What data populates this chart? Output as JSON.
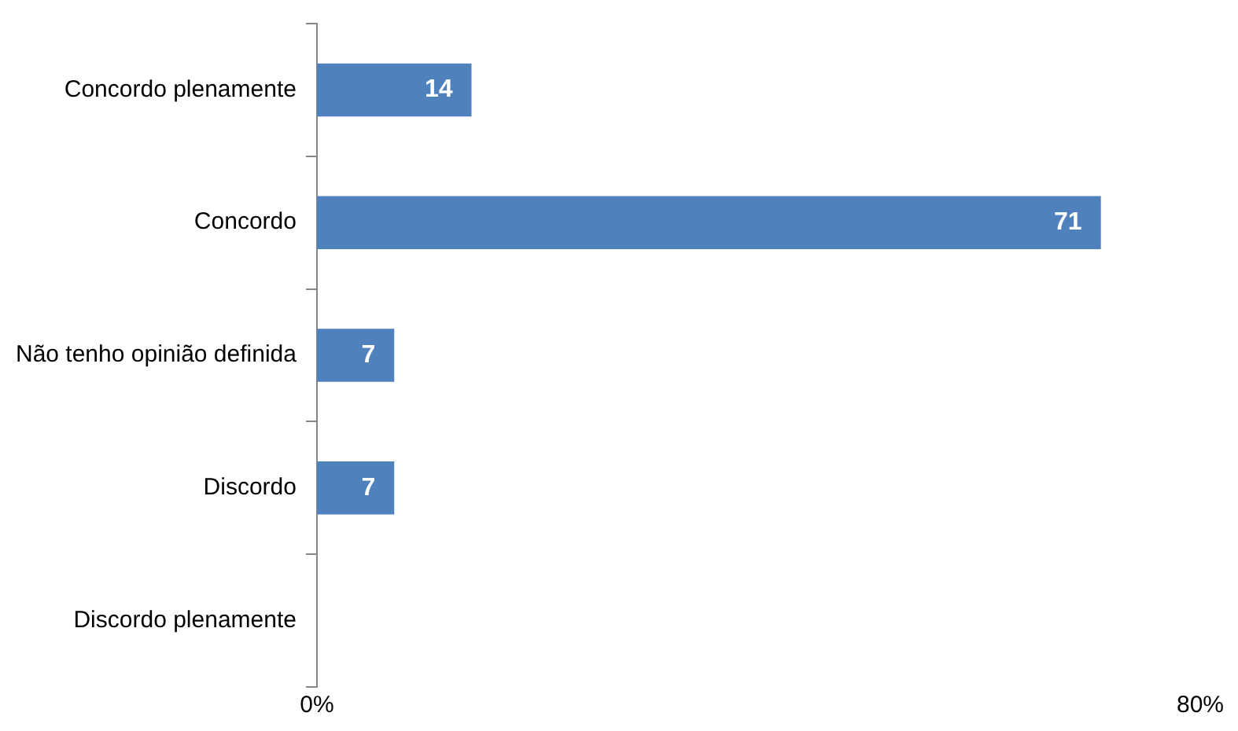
{
  "chart_data": {
    "type": "bar",
    "orientation": "horizontal",
    "categories": [
      "Concordo plenamente",
      "Concordo",
      "Não tenho opinião definida",
      "Discordo",
      "Discordo plenamente"
    ],
    "values": [
      14,
      71,
      7,
      7,
      null
    ],
    "color": "#4f81bd",
    "xlim": [
      0,
      80
    ],
    "xticks": [
      {
        "value": 0,
        "label": "0%"
      },
      {
        "value": 80,
        "label": "80%"
      }
    ],
    "grid": false,
    "legend": false,
    "data_labels": true
  }
}
